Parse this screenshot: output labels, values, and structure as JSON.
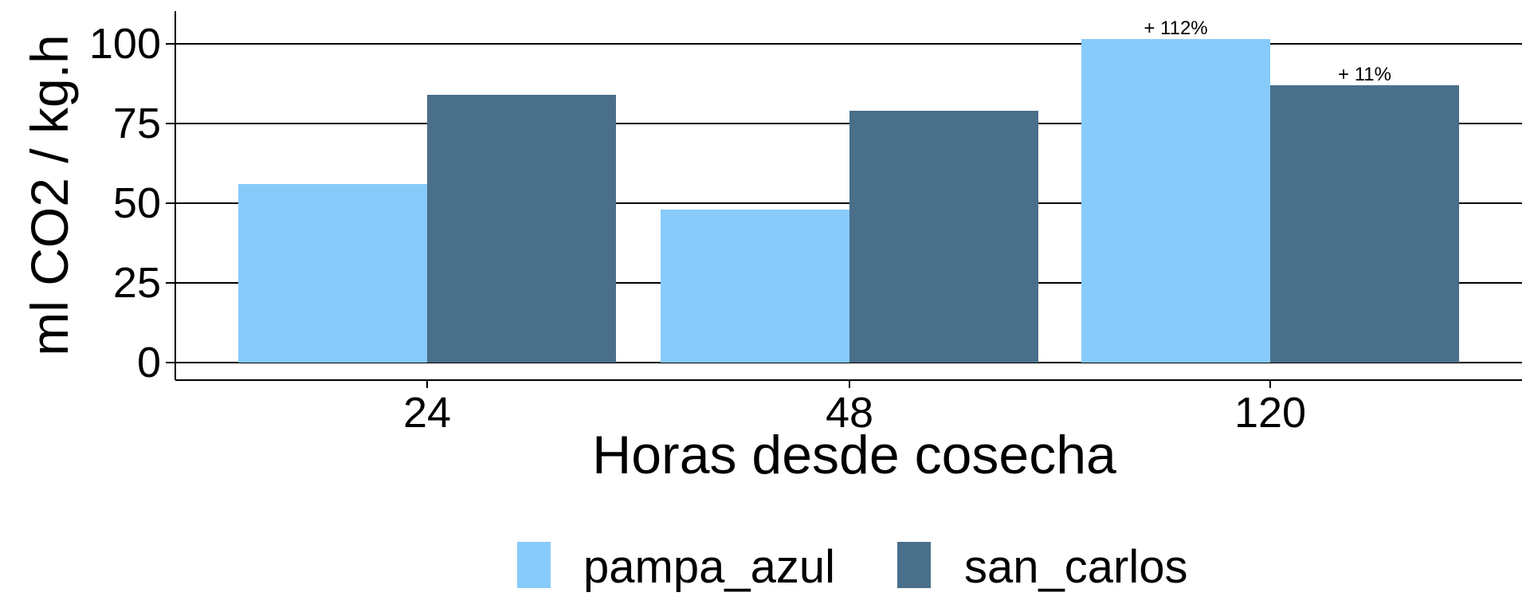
{
  "chart_data": {
    "type": "bar",
    "categories": [
      "24",
      "48",
      "120"
    ],
    "series": [
      {
        "name": "pampa_azul",
        "values": [
          56,
          48,
          101.5
        ],
        "color": "#87CBFB"
      },
      {
        "name": "san_carlos",
        "values": [
          84,
          79,
          87
        ],
        "color": "#4A6F8A"
      }
    ],
    "xlabel": "Horas desde cosecha",
    "ylabel": "ml CO2 / kg.h",
    "ylim": [
      -5,
      110
    ],
    "yticks": [
      "0",
      "25",
      "50",
      "75",
      "100"
    ],
    "ytick_values": [
      0,
      25,
      50,
      75,
      100
    ],
    "grid": "horizontal major gridlines",
    "legend_position": "bottom",
    "annotations": [
      {
        "category": "120",
        "series": "pampa_azul",
        "text": "+ 112%"
      },
      {
        "category": "120",
        "series": "san_carlos",
        "text": "+ 11%"
      }
    ]
  }
}
